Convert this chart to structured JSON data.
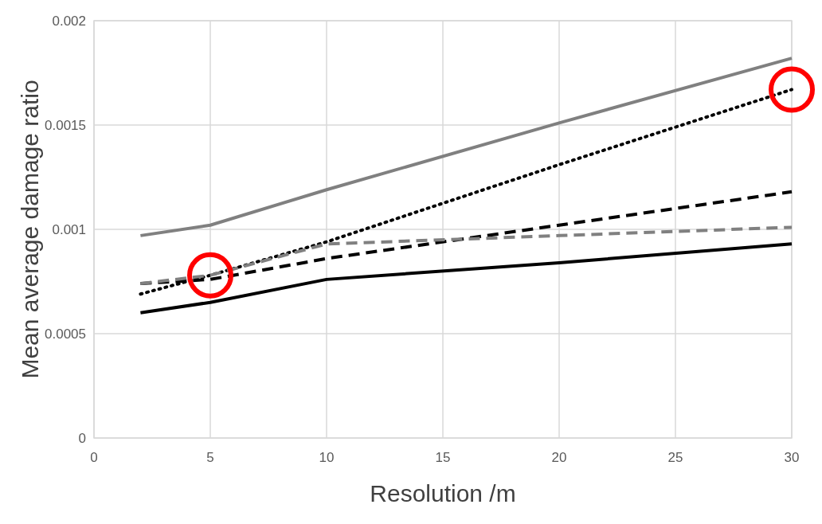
{
  "chart_data": {
    "type": "line",
    "xlabel": "Resolution /m",
    "ylabel": "Mean average damage ratio",
    "xlim": [
      0,
      30
    ],
    "xticks": [
      0,
      5,
      10,
      15,
      20,
      25,
      30
    ],
    "ylim": [
      0,
      0.002
    ],
    "yticks": [
      0,
      0.0005,
      0.001,
      0.0015,
      0.002
    ],
    "grid": true,
    "marker": "none",
    "x": [
      2,
      5,
      10,
      20,
      30
    ],
    "series": [
      {
        "color": "#808080",
        "line_style": "solid",
        "values": [
          0.00097,
          0.00102,
          0.00119,
          0.00151,
          0.00182
        ]
      },
      {
        "color": "#000000",
        "line_style": "dotted",
        "values": [
          0.00069,
          0.00078,
          0.00094,
          0.00131,
          0.00167
        ]
      },
      {
        "color": "#000000",
        "line_style": "dashed",
        "values": [
          0.00074,
          0.00076,
          0.00086,
          0.00102,
          0.00118
        ]
      },
      {
        "color": "#808080",
        "line_style": "dashed",
        "values": [
          0.00074,
          0.00078,
          0.00093,
          0.00097,
          0.00101
        ]
      },
      {
        "color": "#000000",
        "line_style": "solid",
        "values": [
          0.0006,
          0.00065,
          0.00076,
          0.00084,
          0.00093
        ]
      }
    ]
  }
}
